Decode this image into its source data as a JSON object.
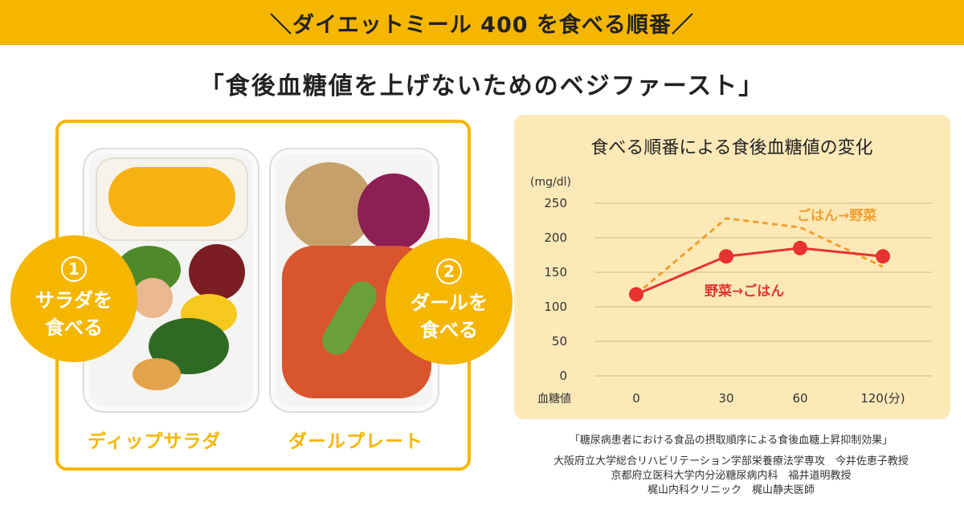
{
  "banner": {
    "title": "＼ダイエットミール 400 を食べる順番／"
  },
  "subtitle": "「食後血糖値を上げないためのベジファースト」",
  "meals": {
    "step1": {
      "number": "1",
      "text": "サラダを\n食べる"
    },
    "step2": {
      "number": "2",
      "text": "ダールを\n食べる"
    },
    "labels": [
      "ディップサラダ",
      "ダールプレート"
    ]
  },
  "colors": {
    "accent": "#f5b600",
    "panel": "#fde9b8",
    "vege_first": "#e8322f",
    "rice_first": "#f0a030"
  },
  "chart_data": {
    "type": "line",
    "title": "食べる順番による食後血糖値の変化",
    "ylabel": "(mg/dl)",
    "xlabel": "血糖値",
    "x": [
      0,
      30,
      60,
      120
    ],
    "x_tick_labels": [
      "0",
      "30",
      "60",
      "120(分)"
    ],
    "y_ticks": [
      0,
      50,
      100,
      150,
      200,
      250
    ],
    "ylim": [
      0,
      250
    ],
    "grid": true,
    "series": [
      {
        "name": "野菜→ごはん",
        "style": "solid-markers",
        "color": "#e8322f",
        "values": [
          118,
          173,
          185,
          173
        ]
      },
      {
        "name": "ごはん→野菜",
        "style": "dashed",
        "color": "#f0a030",
        "values": [
          118,
          228,
          215,
          158
        ]
      }
    ]
  },
  "source": {
    "citation": "「糖尿病患者における食品の摂取順序による食後血糖上昇抑制効果」",
    "authors": [
      "大阪府立大学総合リハビリテーション学部栄養療法学専攻　今井佐恵子教授",
      "京都府立医科大学内分泌糖尿病内科　福井道明教授",
      "梶山内科クリニック　梶山静夫医師"
    ]
  }
}
